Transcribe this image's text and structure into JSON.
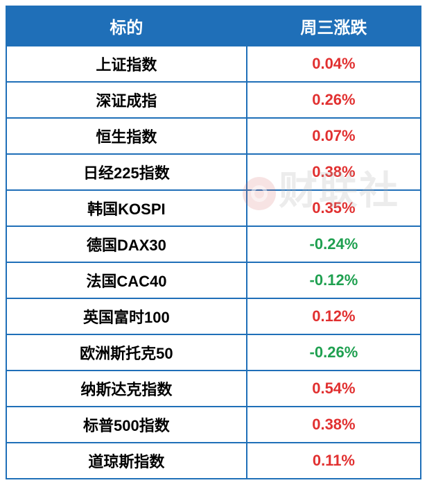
{
  "table": {
    "type": "table",
    "header_bg": "#1f6fb8",
    "header_text_color": "#ffffff",
    "border_color": "#1f6fb8",
    "border_width": 2,
    "positive_color": "#e13030",
    "negative_color": "#1fa050",
    "label_font_weight": "bold",
    "label_fontsize": 22,
    "header_fontsize": 24,
    "columns": [
      {
        "key": "name",
        "label": "标的",
        "width_pct": 58,
        "align": "center"
      },
      {
        "key": "change",
        "label": "周三涨跌",
        "width_pct": 42,
        "align": "center"
      }
    ],
    "rows": [
      {
        "name": "上证指数",
        "change": "0.04%",
        "direction": "pos"
      },
      {
        "name": "深证成指",
        "change": "0.26%",
        "direction": "pos"
      },
      {
        "name": "恒生指数",
        "change": "0.07%",
        "direction": "pos"
      },
      {
        "name": "日经225指数",
        "change": "0.38%",
        "direction": "pos"
      },
      {
        "name": "韩国KOSPI",
        "change": "0.35%",
        "direction": "pos"
      },
      {
        "name": "德国DAX30",
        "change": "-0.24%",
        "direction": "neg"
      },
      {
        "name": "法国CAC40",
        "change": "-0.12%",
        "direction": "neg"
      },
      {
        "name": "英国富时100",
        "change": "0.12%",
        "direction": "pos"
      },
      {
        "name": "欧洲斯托克50",
        "change": "-0.26%",
        "direction": "neg"
      },
      {
        "name": "纳斯达克指数",
        "change": "0.54%",
        "direction": "pos"
      },
      {
        "name": "标普500指数",
        "change": "0.38%",
        "direction": "pos"
      },
      {
        "name": "道琼斯指数",
        "change": "0.11%",
        "direction": "pos"
      }
    ]
  },
  "watermark": {
    "text": "财联社",
    "color": "rgba(180,180,180,0.25)",
    "fontsize": 56
  }
}
